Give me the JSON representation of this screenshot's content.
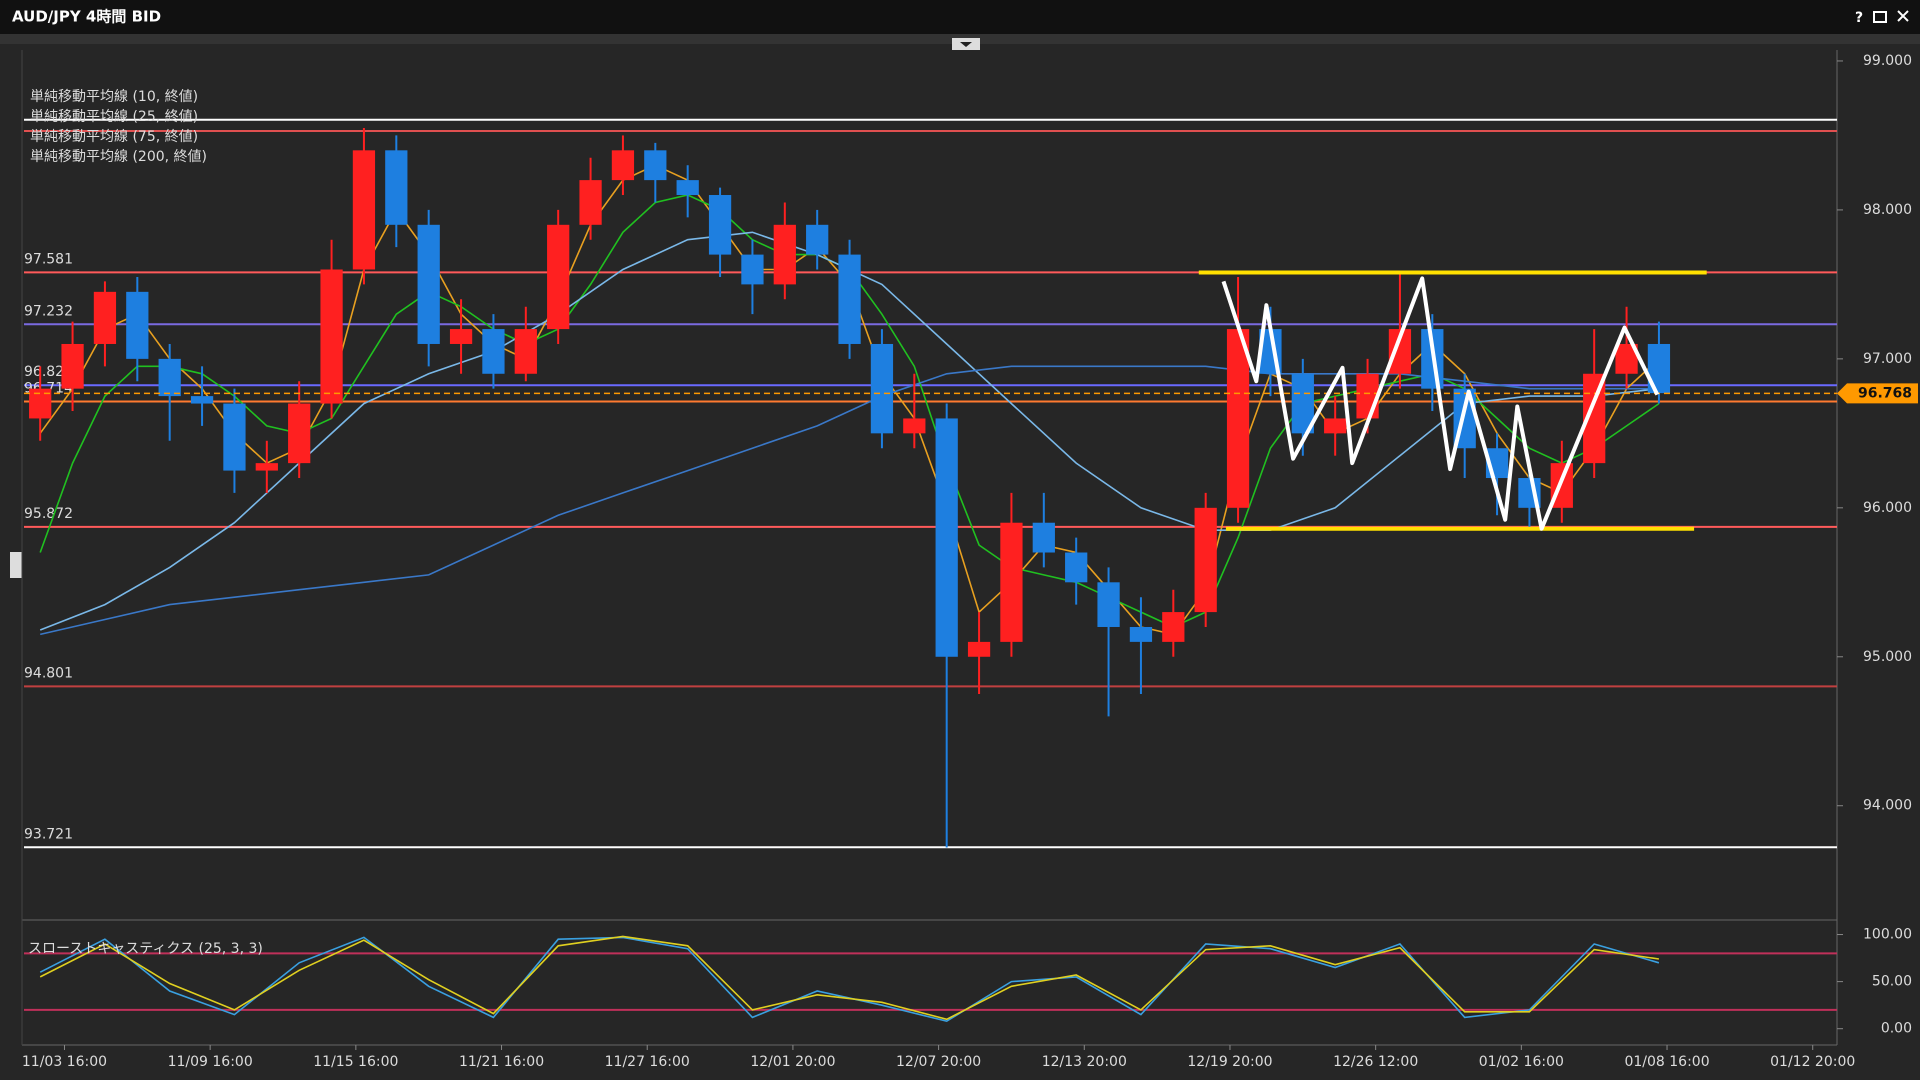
{
  "window": {
    "title": "AUD/JPY 4時間 BID",
    "help": "?"
  },
  "chart_data": [
    {
      "type": "candlestick",
      "up_color": "#ff2020",
      "down_color": "#1e7fe0",
      "xlim": [
        0,
        448
      ],
      "ylim": [
        93.3,
        99.04
      ],
      "xticks": [
        {
          "value": 10,
          "label": "11/03 16:00"
        },
        {
          "value": 46,
          "label": "11/09 16:00"
        },
        {
          "value": 82,
          "label": "11/15 16:00"
        },
        {
          "value": 118,
          "label": "11/21 16:00"
        },
        {
          "value": 154,
          "label": "11/27 16:00"
        },
        {
          "value": 190,
          "label": "12/01 20:00"
        },
        {
          "value": 226,
          "label": "12/07 20:00"
        },
        {
          "value": 262,
          "label": "12/13 20:00"
        },
        {
          "value": 298,
          "label": "12/19 20:00"
        },
        {
          "value": 334,
          "label": "12/26 12:00"
        },
        {
          "value": 370,
          "label": "01/02 16:00"
        },
        {
          "value": 406,
          "label": "01/08 16:00"
        },
        {
          "value": 442,
          "label": "01/12 20:00"
        }
      ],
      "yticks": [
        {
          "value": 94,
          "label": "94.000"
        },
        {
          "value": 95,
          "label": "95.000"
        },
        {
          "value": 96,
          "label": "96.000"
        },
        {
          "value": 97,
          "label": "97.000"
        },
        {
          "value": 98,
          "label": "98.000"
        },
        {
          "value": 99,
          "label": "99.000"
        }
      ],
      "x": [
        4,
        12,
        20,
        28,
        36,
        44,
        52,
        60,
        68,
        76,
        84,
        92,
        100,
        108,
        116,
        124,
        132,
        140,
        148,
        156,
        164,
        172,
        180,
        188,
        196,
        204,
        212,
        220,
        228,
        236,
        244,
        252,
        260,
        268,
        276,
        284,
        292,
        300,
        308,
        316,
        324,
        332,
        340,
        348,
        356,
        364,
        372,
        380,
        388,
        396,
        404
      ],
      "open": [
        96.6,
        96.8,
        97.1,
        97.45,
        97.0,
        96.75,
        96.7,
        96.25,
        96.3,
        96.7,
        97.6,
        98.4,
        97.9,
        97.1,
        97.2,
        96.9,
        97.2,
        97.9,
        98.2,
        98.4,
        98.2,
        98.1,
        97.7,
        97.5,
        97.9,
        97.7,
        97.1,
        96.5,
        96.6,
        95.0,
        95.1,
        95.9,
        95.7,
        95.5,
        95.2,
        95.1,
        95.3,
        96.0,
        97.2,
        96.9,
        96.5,
        96.6,
        96.9,
        97.2,
        96.8,
        96.4,
        96.2,
        96.0,
        96.3,
        96.9,
        97.1
      ],
      "high": [
        96.95,
        97.25,
        97.52,
        97.55,
        97.1,
        96.95,
        96.8,
        96.45,
        96.85,
        97.8,
        98.55,
        98.5,
        98.0,
        97.4,
        97.3,
        97.35,
        98.0,
        98.35,
        98.5,
        98.45,
        98.3,
        98.15,
        97.8,
        98.05,
        98.0,
        97.8,
        97.2,
        96.9,
        96.7,
        95.3,
        96.1,
        96.1,
        95.8,
        95.6,
        95.4,
        95.45,
        96.1,
        97.55,
        97.35,
        97.0,
        96.75,
        97.0,
        97.58,
        97.3,
        96.9,
        96.5,
        96.3,
        96.45,
        97.2,
        97.35,
        97.25
      ],
      "low": [
        96.45,
        96.65,
        96.95,
        96.85,
        96.45,
        96.55,
        96.1,
        96.1,
        96.2,
        96.6,
        97.5,
        97.75,
        96.95,
        96.9,
        96.8,
        96.85,
        97.1,
        97.8,
        98.1,
        98.05,
        97.95,
        97.55,
        97.3,
        97.4,
        97.6,
        97.0,
        96.4,
        96.4,
        93.72,
        94.75,
        95.0,
        95.6,
        95.35,
        94.6,
        94.75,
        95.0,
        95.2,
        95.9,
        96.75,
        96.35,
        96.35,
        96.5,
        96.8,
        96.65,
        96.2,
        95.95,
        95.85,
        95.9,
        96.2,
        96.8,
        96.7
      ],
      "close": [
        96.8,
        97.1,
        97.45,
        97.0,
        96.75,
        96.7,
        96.25,
        96.3,
        96.7,
        97.6,
        98.4,
        97.9,
        97.1,
        97.2,
        96.9,
        97.2,
        97.9,
        98.2,
        98.4,
        98.2,
        98.1,
        97.7,
        97.5,
        97.9,
        97.7,
        97.1,
        96.5,
        96.6,
        95.0,
        95.1,
        95.9,
        95.7,
        95.5,
        95.2,
        95.1,
        95.3,
        96.0,
        97.2,
        96.9,
        96.5,
        96.6,
        96.9,
        97.2,
        96.8,
        96.4,
        96.2,
        96.0,
        96.3,
        96.9,
        97.1,
        96.77
      ],
      "series": [
        {
          "name": "単純移動平均線 (10, 終値)",
          "color": "#e8a020",
          "x": [
            4,
            12,
            20,
            28,
            36,
            44,
            52,
            60,
            68,
            76,
            84,
            92,
            100,
            108,
            116,
            124,
            132,
            140,
            148,
            156,
            164,
            172,
            180,
            188,
            196,
            204,
            212,
            220,
            228,
            236,
            244,
            252,
            260,
            268,
            276,
            284,
            292,
            300,
            308,
            316,
            324,
            332,
            340,
            348,
            356,
            364,
            372,
            380,
            388,
            396,
            404
          ],
          "values": [
            96.5,
            96.8,
            97.2,
            97.3,
            97.0,
            96.8,
            96.5,
            96.3,
            96.4,
            96.8,
            97.6,
            98.0,
            97.7,
            97.3,
            97.1,
            97.0,
            97.4,
            97.9,
            98.2,
            98.3,
            98.2,
            97.9,
            97.6,
            97.6,
            97.75,
            97.5,
            96.9,
            96.6,
            96.0,
            95.3,
            95.5,
            95.75,
            95.7,
            95.45,
            95.2,
            95.15,
            95.45,
            96.3,
            96.9,
            96.8,
            96.5,
            96.6,
            96.9,
            97.1,
            96.9,
            96.5,
            96.2,
            96.1,
            96.4,
            96.8,
            97.0
          ]
        },
        {
          "name": "単純移動平均線 (25, 終値)",
          "color": "#20c020",
          "x": [
            4,
            12,
            20,
            28,
            36,
            44,
            52,
            60,
            68,
            76,
            84,
            92,
            100,
            108,
            116,
            124,
            132,
            140,
            148,
            156,
            164,
            172,
            180,
            188,
            196,
            204,
            212,
            220,
            228,
            236,
            244,
            252,
            260,
            268,
            276,
            284,
            292,
            300,
            308,
            316,
            324,
            332,
            340,
            348,
            356,
            364,
            372,
            380,
            388,
            396,
            404
          ],
          "values": [
            95.7,
            96.3,
            96.75,
            96.95,
            96.95,
            96.9,
            96.75,
            96.55,
            96.5,
            96.6,
            96.95,
            97.3,
            97.45,
            97.35,
            97.2,
            97.1,
            97.2,
            97.5,
            97.85,
            98.05,
            98.1,
            98.0,
            97.8,
            97.7,
            97.7,
            97.6,
            97.3,
            96.95,
            96.3,
            95.75,
            95.6,
            95.55,
            95.5,
            95.4,
            95.3,
            95.2,
            95.3,
            95.8,
            96.4,
            96.7,
            96.75,
            96.8,
            96.85,
            96.9,
            96.8,
            96.6,
            96.4,
            96.3,
            96.4,
            96.55,
            96.7
          ]
        },
        {
          "name": "単純移動平均線 (75, 終値)",
          "color": "#7ab8e8",
          "x": [
            4,
            20,
            36,
            52,
            68,
            84,
            100,
            116,
            132,
            148,
            164,
            180,
            196,
            212,
            228,
            244,
            260,
            276,
            292,
            308,
            324,
            340,
            356,
            372,
            388,
            404
          ],
          "values": [
            95.18,
            95.35,
            95.6,
            95.9,
            96.3,
            96.7,
            96.9,
            97.05,
            97.3,
            97.6,
            97.8,
            97.85,
            97.7,
            97.5,
            97.1,
            96.7,
            96.3,
            96.0,
            95.85,
            95.85,
            96.0,
            96.35,
            96.7,
            96.75,
            96.75,
            96.8
          ]
        },
        {
          "name": "単純移動平均線 (200, 終値)",
          "color": "#3a78c8",
          "x": [
            4,
            20,
            36,
            52,
            68,
            84,
            100,
            116,
            132,
            148,
            164,
            180,
            196,
            212,
            228,
            244,
            260,
            276,
            292,
            308,
            324,
            340,
            356,
            372,
            388,
            404
          ],
          "values": [
            95.15,
            95.25,
            95.35,
            95.4,
            95.45,
            95.5,
            95.55,
            95.75,
            95.95,
            96.1,
            96.25,
            96.4,
            96.55,
            96.75,
            96.9,
            96.95,
            96.95,
            96.95,
            96.95,
            96.9,
            96.9,
            96.9,
            96.85,
            96.8,
            96.8,
            96.8
          ]
        }
      ],
      "levels": [
        {
          "value": 98.605,
          "color": "#ffffff",
          "labeled": false
        },
        {
          "value": 98.53,
          "color": "#e05050",
          "labeled": false
        },
        {
          "value": 97.581,
          "color": "#ff5a5a",
          "labeled": true
        },
        {
          "value": 97.232,
          "color": "#7a6ae0",
          "labeled": true
        },
        {
          "value": 96.823,
          "color": "#6a6aff",
          "labeled": true
        },
        {
          "value": 96.714,
          "color": "#ff7a30",
          "labeled": true
        },
        {
          "value": 95.872,
          "color": "#ff5a5a",
          "labeled": true
        },
        {
          "value": 94.801,
          "color": "#c04040",
          "labeled": true
        },
        {
          "value": 93.721,
          "color": "#ffffff",
          "labeled": true
        }
      ],
      "last_price": {
        "value": 96.768,
        "color": "#ff9900"
      },
      "drawings": [
        {
          "color": "#ffe000",
          "x": [
            290.3,
            415.8
          ],
          "values": [
            97.58,
            97.58
          ]
        },
        {
          "color": "#ffe000",
          "x": [
            297,
            412.7
          ],
          "values": [
            95.86,
            95.86
          ]
        },
        {
          "color": "#ffffff",
          "x": [
            296.4,
            304.5,
            307,
            313.6,
            325.8,
            328.2,
            345.5,
            352.4,
            357,
            366,
            369,
            375,
            395.5,
            403.6
          ],
          "values": [
            97.52,
            96.85,
            97.36,
            96.33,
            96.94,
            96.3,
            97.54,
            96.26,
            96.78,
            95.92,
            96.68,
            95.86,
            97.21,
            96.76
          ]
        }
      ]
    },
    {
      "type": "line",
      "title": "スローストキャスティクス (25, 3, 3)",
      "xlim": [
        0,
        448
      ],
      "ylim": [
        -12,
        108
      ],
      "yticks": [
        {
          "value": 0,
          "label": "0.00"
        },
        {
          "value": 50,
          "label": "50.00"
        },
        {
          "value": 100,
          "label": "100.00"
        }
      ],
      "levels": [
        {
          "value": 80,
          "color": "#c0305a",
          "labeled": false
        },
        {
          "value": 20,
          "color": "#c0305a",
          "labeled": false
        }
      ],
      "series": [
        {
          "color": "#3aa0e0",
          "x": [
            4,
            20,
            36,
            52,
            68,
            84,
            100,
            116,
            132,
            148,
            164,
            180,
            196,
            212,
            228,
            244,
            260,
            276,
            292,
            308,
            324,
            340,
            356,
            372,
            388,
            404
          ],
          "values": [
            60,
            95,
            40,
            15,
            70,
            97,
            45,
            12,
            95,
            97,
            85,
            12,
            40,
            25,
            8,
            50,
            55,
            15,
            90,
            85,
            65,
            90,
            12,
            20,
            90,
            70
          ]
        },
        {
          "color": "#e0d020",
          "x": [
            4,
            20,
            36,
            52,
            68,
            84,
            100,
            116,
            132,
            148,
            164,
            180,
            196,
            212,
            228,
            244,
            260,
            276,
            292,
            308,
            324,
            340,
            356,
            372,
            388,
            404
          ],
          "values": [
            55,
            90,
            48,
            20,
            62,
            94,
            52,
            16,
            88,
            98,
            88,
            20,
            36,
            28,
            10,
            45,
            57,
            20,
            84,
            88,
            68,
            86,
            18,
            18,
            84,
            74
          ]
        }
      ]
    }
  ]
}
